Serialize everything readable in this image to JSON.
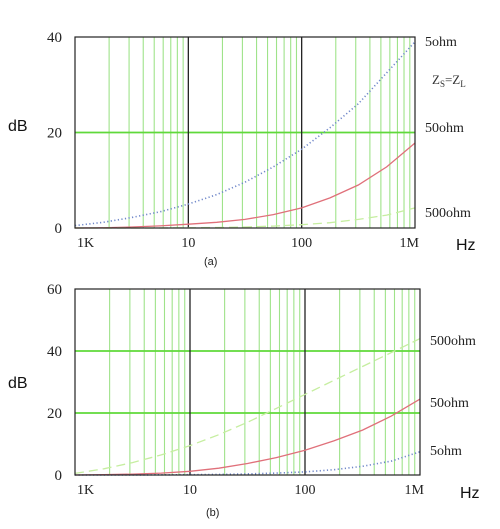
{
  "colors": {
    "grid_minor": "#9fe38a",
    "grid_major_h": "#5fd93a",
    "grid_decade": "#222222",
    "frame": "#222222",
    "series_5ohm": "#6f87c9",
    "series_50ohm": "#e0707a",
    "series_500ohm": "#c6eea0"
  },
  "chart_data": [
    {
      "type": "line",
      "panel_label": "(a)",
      "ylabel": "dB",
      "xlabel": "Hz",
      "x_scale": "log",
      "x_ticks": [
        "1K",
        "10",
        "100",
        "1M"
      ],
      "ylim": [
        0,
        40
      ],
      "y_ticks": [
        "0",
        "20",
        "40"
      ],
      "annotation": "Z_S=Z_L",
      "annotation_main": "Z",
      "annotation_sub1": "S",
      "annotation_eq": "=Z",
      "annotation_sub2": "L",
      "grid": true,
      "x": [
        0,
        0.25,
        0.5,
        0.75,
        1.0,
        1.25,
        1.5,
        1.75,
        2.0,
        2.25,
        2.5,
        2.75,
        3.0
      ],
      "series": [
        {
          "name": "5ohm",
          "style": "dotted",
          "values": [
            0.5,
            1.2,
            2.2,
            3.4,
            5.0,
            7.0,
            9.6,
            12.8,
            16.5,
            21.0,
            26.0,
            32.5,
            39.0
          ]
        },
        {
          "name": "50ohm",
          "style": "solid",
          "values": [
            0.0,
            0.05,
            0.2,
            0.45,
            0.8,
            1.2,
            1.8,
            2.8,
            4.2,
            6.3,
            9.0,
            12.8,
            17.8
          ]
        },
        {
          "name": "500ohm",
          "style": "dashed",
          "values": [
            0.0,
            0.0,
            0.0,
            0.0,
            0.05,
            0.1,
            0.2,
            0.4,
            0.7,
            1.1,
            1.8,
            2.7,
            4.2
          ]
        }
      ]
    },
    {
      "type": "line",
      "panel_label": "(b)",
      "ylabel": "dB",
      "xlabel": "Hz",
      "x_scale": "log",
      "x_ticks": [
        "1K",
        "10",
        "100",
        "1M"
      ],
      "ylim": [
        0,
        60
      ],
      "y_ticks": [
        "0",
        "20",
        "40",
        "60"
      ],
      "grid": true,
      "x": [
        0,
        0.25,
        0.5,
        0.75,
        1.0,
        1.25,
        1.5,
        1.75,
        2.0,
        2.25,
        2.5,
        2.75,
        3.0
      ],
      "series": [
        {
          "name": "500ohm",
          "style": "dashed",
          "values": [
            0.5,
            2.0,
            4.0,
            6.5,
            9.5,
            13.0,
            17.0,
            21.5,
            26.0,
            30.5,
            35.0,
            39.5,
            44.0
          ]
        },
        {
          "name": "50ohm",
          "style": "solid",
          "values": [
            0.0,
            0.1,
            0.3,
            0.6,
            1.2,
            2.2,
            3.7,
            5.6,
            8.0,
            11.0,
            14.5,
            19.0,
            24.5
          ]
        },
        {
          "name": "5ohm",
          "style": "dotted",
          "values": [
            0.0,
            0.0,
            0.0,
            0.05,
            0.1,
            0.2,
            0.35,
            0.6,
            1.0,
            1.7,
            2.8,
            4.5,
            7.5
          ]
        }
      ]
    }
  ]
}
